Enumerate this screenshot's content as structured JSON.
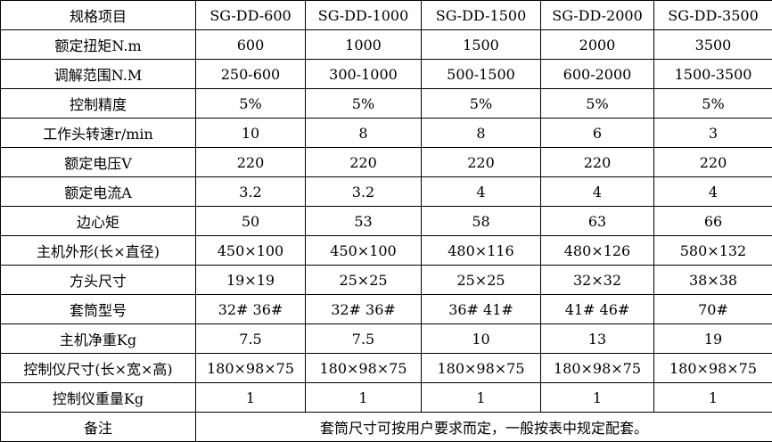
{
  "header": [
    "规格项目",
    "SG-DD-600",
    "SG-DD-1000",
    "SG-DD-1500",
    "SG-DD-2000",
    "SG-DD-3500"
  ],
  "rows": [
    {
      "label": "额定扭矩N.m",
      "values": [
        "600",
        "1000",
        "1500",
        "2000",
        "3500"
      ]
    },
    {
      "label": "调解范围N.M",
      "values": [
        "250-600",
        "300-1000",
        "500-1500",
        "600-2000",
        "1500-3500"
      ]
    },
    {
      "label": "控制精度",
      "values": [
        "5%",
        "5%",
        "5%",
        "5%",
        "5%"
      ]
    },
    {
      "label": "工作头转速r/min",
      "values": [
        "10",
        "8",
        "8",
        "6",
        "3"
      ]
    },
    {
      "label": "额定电压V",
      "values": [
        "220",
        "220",
        "220",
        "220",
        "220"
      ]
    },
    {
      "label": "额定电流A",
      "values": [
        "3.2",
        "3.2",
        "4",
        "4",
        "4"
      ]
    },
    {
      "label": "边心矩",
      "values": [
        "50",
        "53",
        "58",
        "63",
        "66"
      ]
    },
    {
      "label": "主机外形(长×直径)",
      "values": [
        "450×100",
        "450×100",
        "480×116",
        "480×126",
        "580×132"
      ]
    },
    {
      "label": "方头尺寸",
      "values": [
        "19×19",
        "25×25",
        "25×25",
        "32×32",
        "38×38"
      ]
    },
    {
      "label": "套筒型号",
      "values": [
        "32# 36#",
        "32# 36#",
        "36# 41#",
        "41# 46#",
        "70#"
      ]
    },
    {
      "label": "主机净重Kg",
      "values": [
        "7.5",
        "7.5",
        "10",
        "13",
        "19"
      ]
    },
    {
      "label": "控制仪尺寸(长×宽×高)",
      "values": [
        "180×98×75",
        "180×98×75",
        "180×98×75",
        "180×98×75",
        "180×98×75"
      ]
    },
    {
      "label": "控制仪重量Kg",
      "values": [
        "1",
        "1",
        "1",
        "1",
        "1"
      ]
    }
  ],
  "note": {
    "label": "备注",
    "text": "套筒尺寸可按用户要求而定，一般按表中规定配套。"
  }
}
